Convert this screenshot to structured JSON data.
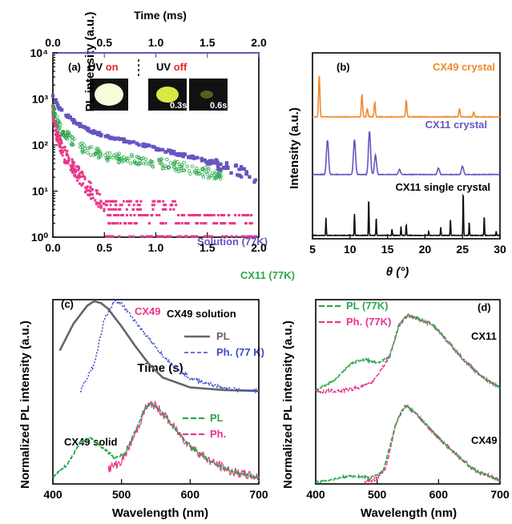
{
  "colors": {
    "orange": "#f08a2a",
    "purple": "#6655c0",
    "green": "#2aa84a",
    "magenta": "#e8368a",
    "grey": "#666666",
    "blue": "#3b49c9",
    "black": "#111111",
    "top_time_axis": "#6655c0"
  },
  "chart_data": [
    {
      "panel": "(a)",
      "type": "scatter",
      "xlabel": "Time (s)",
      "top_xlabel": "Time (ms)",
      "ylabel": "PL intensity (a.u.)",
      "yscale": "log",
      "xlim": [
        0,
        2.0
      ],
      "top_xlim": [
        0,
        2.0
      ],
      "ylim": [
        1,
        10000
      ],
      "x_ticks": [
        "0.0",
        "0.5",
        "1.0",
        "1.5",
        "2.0"
      ],
      "top_x_ticks": [
        "0.0",
        "0.5",
        "1.0",
        "1.5",
        "2.0"
      ],
      "y_ticks": [
        "10⁰",
        "10¹",
        "10²",
        "10³",
        "10⁴"
      ],
      "inset": {
        "label_on": "UV",
        "label_on_state": "on",
        "label_off": "UV",
        "label_off_state": "off",
        "times": [
          "0.3s",
          "0.6s"
        ]
      },
      "series": [
        {
          "name": "Solution (77K)",
          "axis": "top (ms)",
          "x": [
            0.0,
            0.05,
            0.1,
            0.2,
            0.3,
            0.4,
            0.5,
            0.6,
            0.8,
            1.0,
            1.2,
            1.4,
            1.6,
            1.8,
            1.95
          ],
          "y": [
            1200,
            700,
            500,
            330,
            240,
            190,
            160,
            140,
            110,
            85,
            65,
            50,
            38,
            28,
            20
          ]
        },
        {
          "name": "CX11 (77K)",
          "axis": "bottom (s)",
          "x": [
            0.0,
            0.03,
            0.05,
            0.1,
            0.2,
            0.3,
            0.4,
            0.5,
            0.6,
            0.8,
            1.0,
            1.2,
            1.4,
            1.6
          ],
          "y": [
            600,
            400,
            300,
            190,
            110,
            85,
            70,
            60,
            55,
            48,
            42,
            35,
            28,
            22
          ]
        },
        {
          "name": "CX49",
          "axis": "bottom (s)",
          "x": [
            0.0,
            0.02,
            0.05,
            0.1,
            0.15,
            0.2,
            0.3,
            0.4,
            0.5,
            0.6,
            0.8,
            1.0,
            1.5,
            2.0
          ],
          "y": [
            500,
            250,
            140,
            70,
            45,
            30,
            15,
            8,
            5,
            4,
            3,
            2,
            2,
            2
          ]
        }
      ]
    },
    {
      "panel": "(b)",
      "type": "line",
      "xlabel": "θ (°)",
      "ylabel": "Intensity (a.u.)",
      "xlim": [
        5,
        30
      ],
      "x_ticks": [
        "5",
        "10",
        "15",
        "20",
        "25",
        "30"
      ],
      "series": [
        {
          "name": "CX49 crystal",
          "peaks_x": [
            5.9,
            11.6,
            12.3,
            13.3,
            17.5,
            24.6,
            26.5
          ],
          "peaks_h": [
            1.0,
            0.55,
            0.2,
            0.35,
            0.4,
            0.2,
            0.12
          ]
        },
        {
          "name": "CX11 crystal",
          "peaks_x": [
            7.0,
            10.6,
            12.6,
            13.4,
            16.6,
            21.8,
            25.0
          ],
          "peaks_h": [
            0.8,
            0.8,
            1.0,
            0.45,
            0.12,
            0.15,
            0.2
          ]
        },
        {
          "name": "CX11 single crystal",
          "peaks_x": [
            6.8,
            10.6,
            12.5,
            13.5,
            15.6,
            16.8,
            17.5,
            20.5,
            22.1,
            23.4,
            25.1,
            25.9,
            27.9,
            29.5
          ],
          "peaks_h": [
            0.4,
            0.5,
            0.85,
            0.4,
            0.15,
            0.2,
            0.25,
            0.1,
            0.2,
            0.35,
            1.0,
            0.3,
            0.45,
            0.1
          ]
        }
      ]
    },
    {
      "panel": "(c)",
      "type": "line",
      "xlabel": "Wavelength (nm)",
      "ylabel": "Normalized PL intensity (a.u.)",
      "xlim": [
        400,
        700
      ],
      "x_ticks": [
        "400",
        "500",
        "600",
        "700"
      ],
      "annotations": [
        "CX49 solution",
        "CX49 solid"
      ],
      "series": [
        {
          "name": "PL",
          "group": "CX49 solution",
          "x": [
            410,
            430,
            450,
            460,
            470,
            480,
            500,
            520,
            540,
            560,
            600,
            650,
            700
          ],
          "y": [
            0.45,
            0.75,
            0.95,
            1.0,
            0.98,
            0.92,
            0.72,
            0.5,
            0.3,
            0.15,
            0.04,
            0.01,
            0.0
          ]
        },
        {
          "name": "Ph. (77 K)",
          "group": "CX49 solution",
          "x": [
            440,
            460,
            475,
            490,
            500,
            520,
            540,
            560,
            580,
            600,
            650,
            700
          ],
          "y": [
            0.0,
            0.3,
            0.8,
            1.0,
            0.97,
            0.78,
            0.58,
            0.4,
            0.25,
            0.14,
            0.03,
            0.0
          ]
        },
        {
          "name": "PL",
          "group": "CX49 solid",
          "x": [
            400,
            420,
            440,
            455,
            470,
            490,
            505,
            520,
            535,
            545,
            560,
            580,
            600,
            630,
            660,
            700
          ],
          "y": [
            0.05,
            0.2,
            0.5,
            0.55,
            0.45,
            0.3,
            0.35,
            0.65,
            0.95,
            1.0,
            0.88,
            0.65,
            0.45,
            0.25,
            0.12,
            0.04
          ]
        },
        {
          "name": "Ph.",
          "group": "CX49 solid",
          "x": [
            480,
            500,
            520,
            535,
            545,
            560,
            580,
            600,
            630,
            660,
            700
          ],
          "y": [
            0.15,
            0.25,
            0.6,
            0.95,
            1.0,
            0.88,
            0.65,
            0.45,
            0.25,
            0.12,
            0.04
          ]
        }
      ]
    },
    {
      "panel": "(d)",
      "type": "line",
      "xlabel": "Wavelength (nm)",
      "ylabel": "Normalized PL intensity (a.u.)",
      "xlim": [
        400,
        700
      ],
      "x_ticks": [
        "400",
        "500",
        "600",
        "700"
      ],
      "annotations": [
        "CX11",
        "CX49"
      ],
      "series": [
        {
          "name": "PL (77K)",
          "group": "CX11",
          "x": [
            400,
            430,
            460,
            480,
            500,
            520,
            535,
            550,
            565,
            590,
            610,
            640,
            670,
            700
          ],
          "y": [
            0.02,
            0.15,
            0.38,
            0.42,
            0.38,
            0.45,
            0.85,
            1.0,
            0.95,
            0.88,
            0.7,
            0.42,
            0.2,
            0.05
          ]
        },
        {
          "name": "Ph. (77K)",
          "group": "CX11",
          "x": [
            400,
            450,
            490,
            520,
            535,
            550,
            565,
            590,
            610,
            640,
            670,
            700
          ],
          "y": [
            0.0,
            0.02,
            0.1,
            0.45,
            0.85,
            1.0,
            0.95,
            0.88,
            0.7,
            0.42,
            0.2,
            0.05
          ]
        },
        {
          "name": "PL (77K)",
          "group": "CX49",
          "x": [
            400,
            430,
            450,
            470,
            490,
            510,
            530,
            545,
            560,
            580,
            600,
            630,
            660,
            700
          ],
          "y": [
            0.0,
            0.04,
            0.08,
            0.08,
            0.06,
            0.15,
            0.75,
            1.0,
            0.92,
            0.75,
            0.58,
            0.35,
            0.15,
            0.03
          ]
        },
        {
          "name": "Ph. (77K)",
          "group": "CX49",
          "x": [
            480,
            500,
            515,
            530,
            545,
            560,
            580,
            600,
            630,
            660,
            700
          ],
          "y": [
            0.0,
            0.05,
            0.2,
            0.75,
            1.0,
            0.92,
            0.75,
            0.58,
            0.35,
            0.15,
            0.03
          ]
        }
      ]
    }
  ]
}
